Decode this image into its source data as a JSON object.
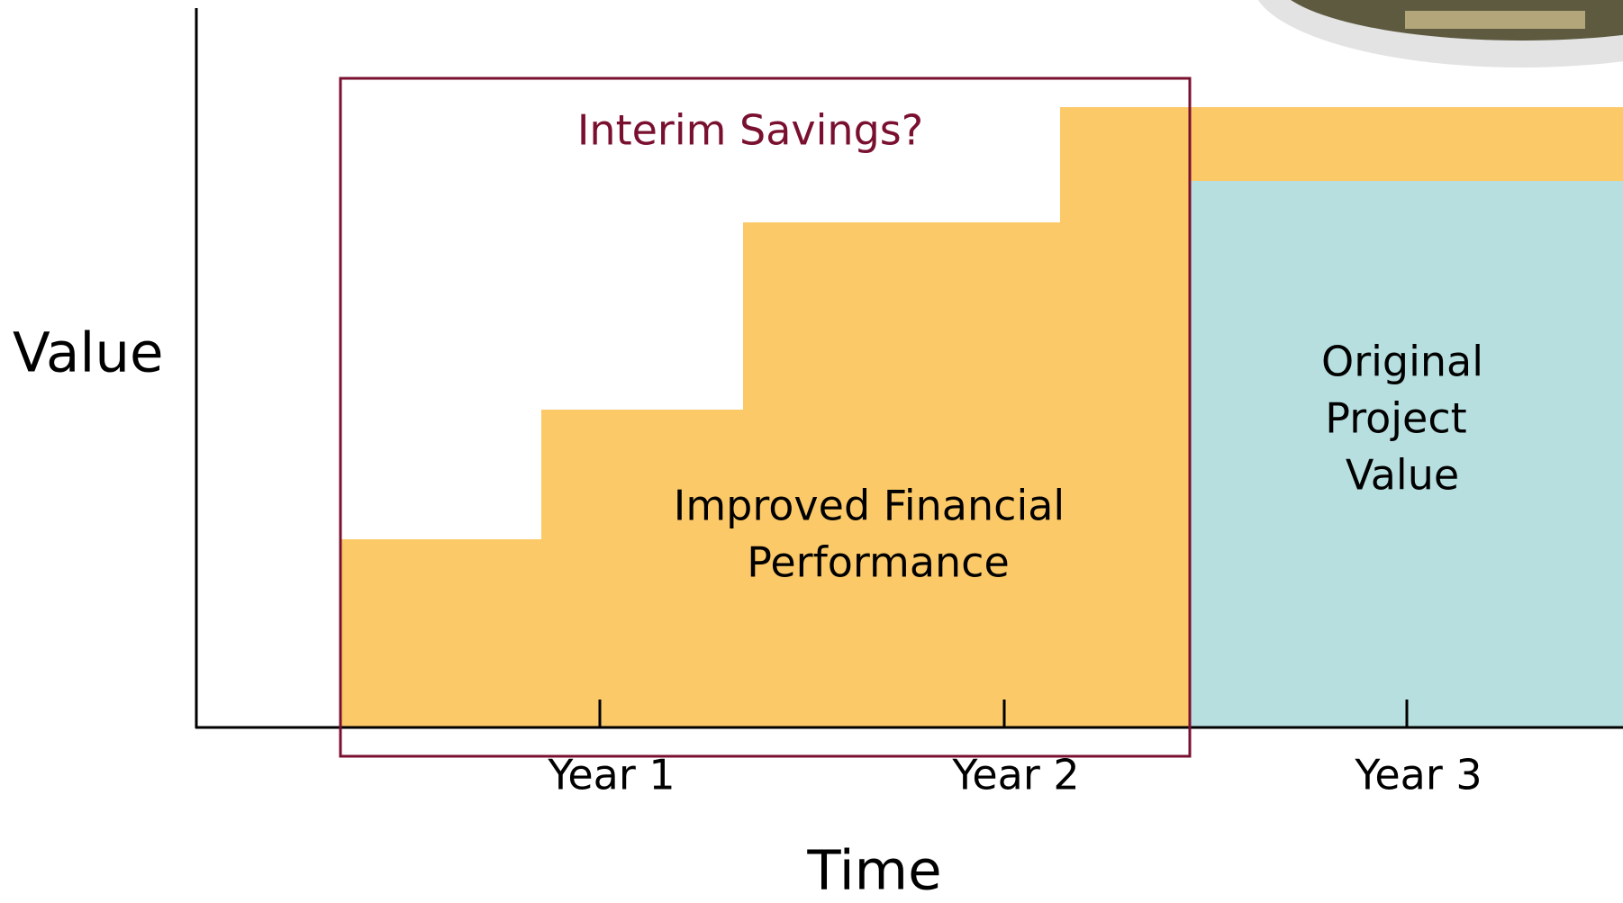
{
  "axes": {
    "y_label": "Value",
    "x_label": "Time",
    "ticks": [
      "Year 1",
      "Year 2",
      "Year 3"
    ]
  },
  "annotations": {
    "interim": "Interim Savings?",
    "improved": [
      "Improved Financial",
      "Performance"
    ],
    "original": [
      "Original",
      "Project",
      "Value"
    ]
  }
}
